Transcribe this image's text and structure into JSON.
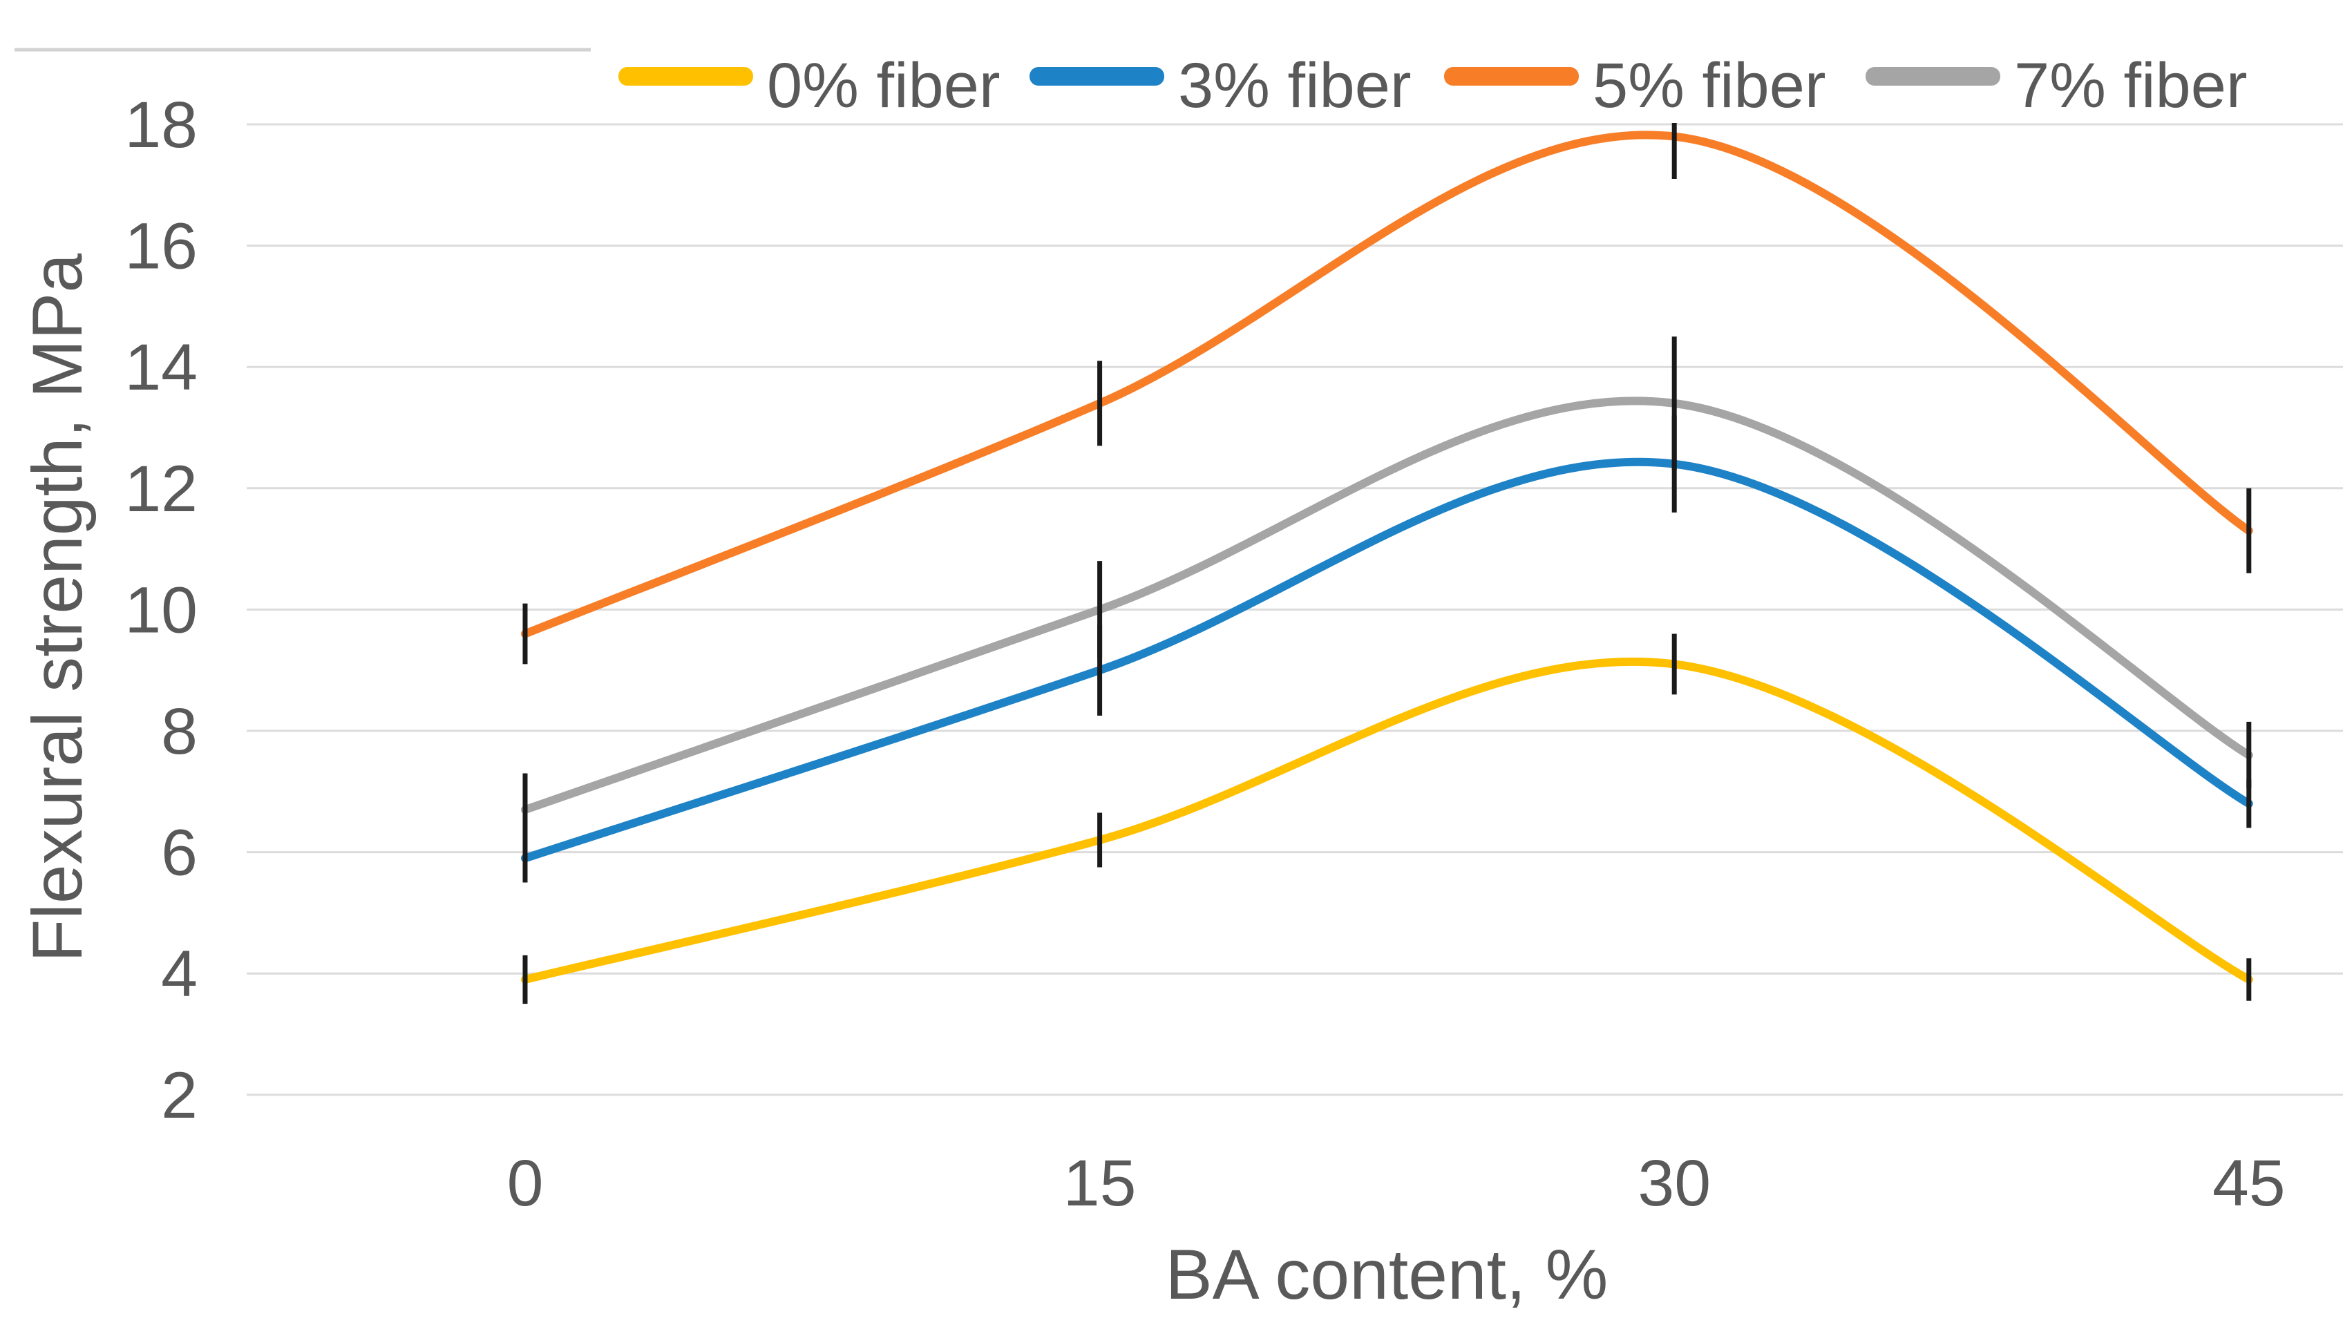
{
  "chart_data": {
    "type": "line",
    "title": "",
    "xlabel": "BA content, %",
    "ylabel": "Flexural strength, MPa",
    "x": [
      0,
      15,
      30,
      45
    ],
    "x_tick_labels": [
      "0",
      "15",
      "30",
      "45"
    ],
    "yticks": [
      2,
      4,
      6,
      8,
      10,
      12,
      14,
      16,
      18
    ],
    "ylim": [
      2,
      18
    ],
    "grid": true,
    "smooth": true,
    "legend_position": "top",
    "error_bars": true,
    "series": [
      {
        "name": "0% fiber",
        "color": "#FFC000",
        "values": [
          3.9,
          6.2,
          9.1,
          3.9
        ],
        "error": [
          0.4,
          0.45,
          0.5,
          0.35
        ]
      },
      {
        "name": "3% fiber",
        "color": "#1E82C6",
        "values": [
          5.9,
          9.0,
          12.4,
          6.8
        ],
        "error": [
          0.4,
          0.75,
          0.8,
          0.4
        ]
      },
      {
        "name": "5% fiber",
        "color": "#F87D27",
        "values": [
          9.6,
          13.4,
          17.8,
          11.3
        ],
        "error": [
          0.5,
          0.7,
          0.7,
          0.7
        ]
      },
      {
        "name": "7% fiber",
        "color": "#A5A5A5",
        "values": [
          6.7,
          10.0,
          13.4,
          7.6
        ],
        "error": [
          0.6,
          0.8,
          1.1,
          0.55
        ]
      }
    ]
  },
  "style": {
    "text_color": "#595959",
    "gridline_color": "#DCDCDC",
    "top_border_color": "#D2D2D2",
    "error_bar_color": "#1A1A1A",
    "background": "#FFFFFF"
  }
}
